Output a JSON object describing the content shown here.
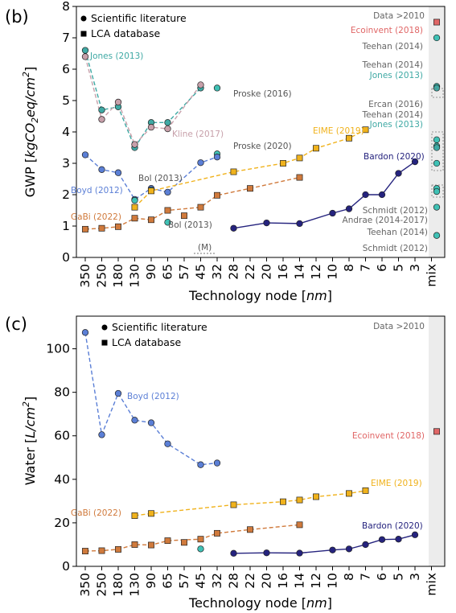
{
  "figure": {
    "x_ticks": [
      "350",
      "250",
      "180",
      "130",
      "90",
      "65",
      "57",
      "45",
      "32",
      "28",
      "22",
      "20",
      "16",
      "14",
      "12",
      "10",
      "8",
      "7",
      "6",
      "5",
      "3",
      "mix"
    ],
    "x_title": "Technology node [nm]",
    "legend": {
      "literature": "Scientific literature",
      "database": "LCA database"
    },
    "mix_header": "Data >2010"
  },
  "chart_data": [
    {
      "panel": "(b)",
      "type": "line",
      "ylabel": "GWP [kgCO2eq/cm2]",
      "ylim": [
        0,
        8
      ],
      "yticks": [
        0,
        1,
        2,
        3,
        4,
        5,
        6,
        7,
        8
      ],
      "grid": false,
      "legend_position": "top-left",
      "series": [
        {
          "name": "Jones (2013)",
          "color": "#3fa9a4",
          "marker": "circle",
          "linestyle": "dashed",
          "points": [
            [
              "350",
              6.6
            ],
            [
              "250",
              4.7
            ],
            [
              "180",
              4.8
            ],
            [
              "130",
              3.5
            ],
            [
              "90",
              4.3
            ],
            [
              "65",
              4.3
            ],
            [
              "45",
              5.4
            ]
          ]
        },
        {
          "name": "Kline (2017)",
          "color": "#c7a0aa",
          "marker": "circle",
          "linestyle": "dashed",
          "points": [
            [
              "350",
              6.4
            ],
            [
              "250",
              4.4
            ],
            [
              "180",
              4.95
            ],
            [
              "130",
              3.6
            ],
            [
              "90",
              4.15
            ],
            [
              "65",
              4.1
            ],
            [
              "45",
              5.5
            ]
          ]
        },
        {
          "name": "Proske (2016)",
          "color": "#3fc1b5",
          "marker": "circle",
          "linestyle": "none",
          "points": [
            [
              "32",
              5.4
            ]
          ]
        },
        {
          "name": "Proske (2020)",
          "color": "#3fc1b5",
          "marker": "circle",
          "linestyle": "none",
          "points": [
            [
              "32",
              3.3
            ]
          ]
        },
        {
          "name": "Boyd (2012)",
          "color": "#5b7fd6",
          "marker": "circle",
          "linestyle": "dashed",
          "points": [
            [
              "350",
              3.27
            ],
            [
              "250",
              2.8
            ],
            [
              "180",
              2.7
            ],
            [
              "130",
              1.85
            ],
            [
              "90",
              2.2
            ],
            [
              "65",
              2.08
            ],
            [
              "45",
              3.02
            ],
            [
              "32",
              3.2
            ]
          ]
        },
        {
          "name": "Bol (2013)",
          "color": "#3fc1b5",
          "marker": "circle",
          "linestyle": "none",
          "points": [
            [
              "130",
              1.82
            ],
            [
              "90",
              2.15
            ],
            [
              "65",
              1.12
            ]
          ]
        },
        {
          "name": "GaBi (2022)",
          "color": "#d07a3c",
          "marker": "square",
          "linestyle": "dashed",
          "points": [
            [
              "350",
              0.9
            ],
            [
              "250",
              0.93
            ],
            [
              "180",
              0.98
            ],
            [
              "130",
              1.25
            ],
            [
              "90",
              1.2
            ],
            [
              "65",
              1.5
            ],
            [
              "45",
              1.6
            ],
            [
              "32",
              1.98
            ],
            [
              "22",
              2.2
            ],
            [
              "14",
              2.55
            ]
          ]
        },
        {
          "name": "(M)",
          "color": "#d07a3c",
          "marker": "square",
          "linestyle": "none",
          "points": [
            [
              "57",
              1.33
            ]
          ]
        },
        {
          "name": "EIME (2019)",
          "color": "#f0b21c",
          "marker": "square",
          "linestyle": "dashed",
          "points": [
            [
              "130",
              1.6
            ],
            [
              "90",
              2.12
            ],
            [
              "28",
              2.73
            ],
            [
              "16",
              3.0
            ],
            [
              "14",
              3.17
            ],
            [
              "12",
              3.48
            ],
            [
              "8",
              3.8
            ],
            [
              "7",
              4.07
            ]
          ]
        },
        {
          "name": "Bardon (2020)",
          "color": "#25237e",
          "marker": "circle",
          "linestyle": "solid",
          "points": [
            [
              "28",
              0.93
            ],
            [
              "20",
              1.1
            ],
            [
              "14",
              1.08
            ],
            [
              "10",
              1.41
            ],
            [
              "8",
              1.55
            ],
            [
              "7",
              2.0
            ],
            [
              "6",
              2.0
            ],
            [
              "5",
              2.68
            ],
            [
              "3",
              3.05
            ]
          ]
        }
      ],
      "mix": [
        {
          "label": "Ecoinvent (2018)",
          "value": 7.5,
          "color": "#e06666",
          "marker": "square"
        },
        {
          "label": "Teehan (2014)",
          "value": 7.0,
          "color": "#3fc1b5",
          "marker": "circle"
        },
        {
          "label": "Teehan (2014)",
          "value": 5.45,
          "color": "#3fc1b5",
          "marker": "circle"
        },
        {
          "label": "Jones (2013)",
          "value": 5.4,
          "color": "#3fa9a4",
          "marker": "circle"
        },
        {
          "label": "Ercan (2016)",
          "value": 3.75,
          "color": "#3fc1b5",
          "marker": "circle"
        },
        {
          "label": "Teehan (2014)",
          "value": 3.55,
          "color": "#3fc1b5",
          "marker": "circle"
        },
        {
          "label": "Jones (2013)",
          "value": 3.5,
          "color": "#3fa9a4",
          "marker": "circle"
        },
        {
          "label": "",
          "value": 3.0,
          "color": "#3fc1b5",
          "marker": "circle"
        },
        {
          "label": "Schmidt (2012)",
          "value": 2.2,
          "color": "#3fc1b5",
          "marker": "circle"
        },
        {
          "label": "Andrae (2014-2017)",
          "value": 2.1,
          "color": "#3fc1b5",
          "marker": "circle"
        },
        {
          "label": "Teehan (2014)",
          "value": 1.6,
          "color": "#3fc1b5",
          "marker": "circle"
        },
        {
          "label": "Schmidt (2012)",
          "value": 0.7,
          "color": "#3fc1b5",
          "marker": "circle"
        }
      ]
    },
    {
      "panel": "(c)",
      "type": "line",
      "ylabel": "Water [L/cm2]",
      "ylim": [
        0,
        115
      ],
      "yticks": [
        0,
        20,
        40,
        60,
        80,
        100
      ],
      "grid": false,
      "legend_position": "top-left",
      "series": [
        {
          "name": "Boyd (2012)",
          "color": "#5b7fd6",
          "marker": "circle",
          "linestyle": "dashed",
          "points": [
            [
              "350",
              107.5
            ],
            [
              "250",
              60.5
            ],
            [
              "180",
              79.5
            ],
            [
              "130",
              67.2
            ],
            [
              "90",
              66.0
            ],
            [
              "65",
              56.3
            ],
            [
              "45",
              46.7
            ],
            [
              "32",
              47.5
            ]
          ]
        },
        {
          "name": "EIME (2019)",
          "color": "#f0b21c",
          "marker": "square",
          "linestyle": "dashed",
          "points": [
            [
              "130",
              23.3
            ],
            [
              "90",
              24.3
            ],
            [
              "28",
              28.3
            ],
            [
              "16",
              29.7
            ],
            [
              "14",
              30.5
            ],
            [
              "12",
              32.0
            ],
            [
              "8",
              33.5
            ],
            [
              "7",
              34.8
            ]
          ]
        },
        {
          "name": "GaBi (2022)",
          "color": "#d07a3c",
          "marker": "square",
          "linestyle": "dashed",
          "points": [
            [
              "350",
              7.0
            ],
            [
              "250",
              7.2
            ],
            [
              "180",
              7.8
            ],
            [
              "130",
              10.0
            ],
            [
              "90",
              9.8
            ],
            [
              "65",
              11.8
            ],
            [
              "45",
              12.5
            ],
            [
              "32",
              15.2
            ],
            [
              "22",
              16.9
            ],
            [
              "14",
              19.1
            ]
          ]
        },
        {
          "name": "(M)",
          "color": "#d07a3c",
          "marker": "square",
          "linestyle": "none",
          "points": [
            [
              "57",
              11.0
            ]
          ]
        },
        {
          "name": "",
          "color": "#3fc1b5",
          "marker": "circle",
          "linestyle": "none",
          "points": [
            [
              "45",
              8.0
            ]
          ]
        },
        {
          "name": "Bardon (2020)",
          "color": "#25237e",
          "marker": "circle",
          "linestyle": "solid",
          "points": [
            [
              "28",
              6.0
            ],
            [
              "20",
              6.2
            ],
            [
              "14",
              6.1
            ],
            [
              "10",
              7.5
            ],
            [
              "8",
              8.0
            ],
            [
              "7",
              10.0
            ],
            [
              "6",
              12.3
            ],
            [
              "5",
              12.5
            ],
            [
              "3",
              14.5
            ]
          ]
        }
      ],
      "mix": [
        {
          "label": "Ecoinvent (2018)",
          "value": 62.0,
          "color": "#e06666",
          "marker": "square"
        }
      ]
    }
  ]
}
